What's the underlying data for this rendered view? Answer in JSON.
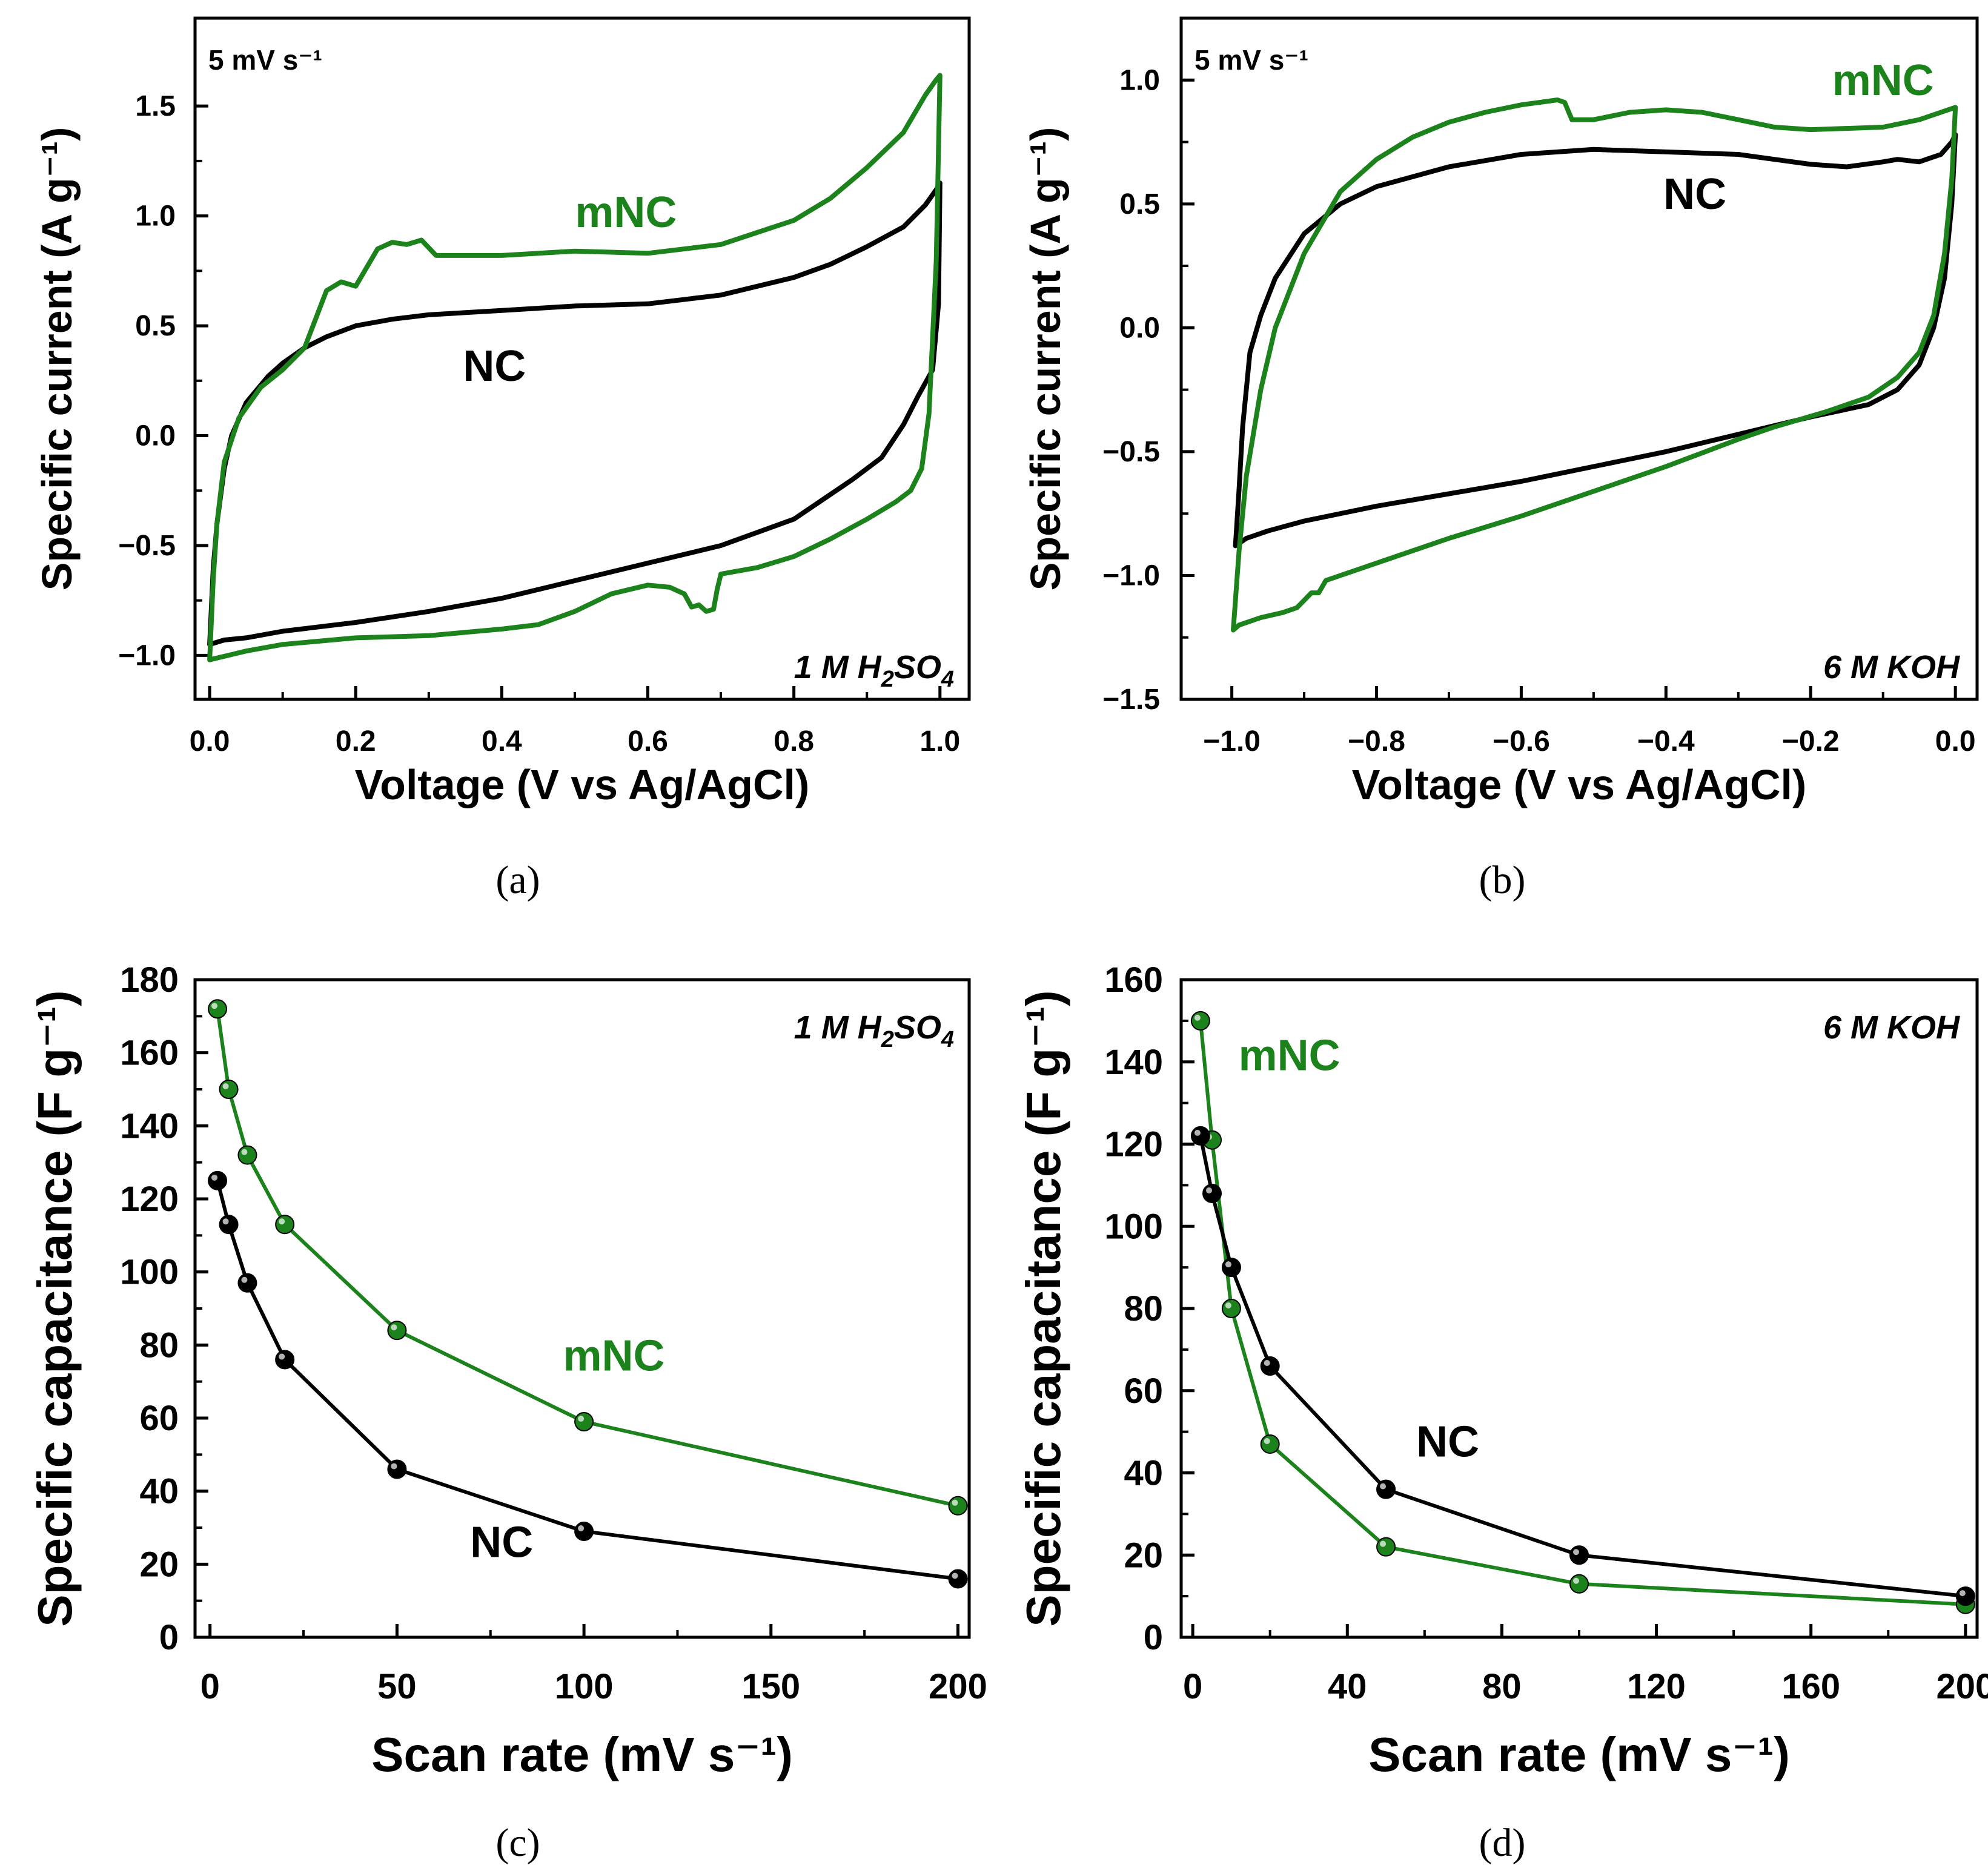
{
  "colors": {
    "NC": "#000000",
    "mNC": "#1c831c",
    "axis": "#000000"
  },
  "chart_data": [
    {
      "id": "a",
      "type": "line",
      "panel_label": "(a)",
      "title": "",
      "xlabel": "Voltage (V vs Ag/AgCl)",
      "ylabel": "Specific current (A g⁻¹)",
      "xlim": [
        -0.02,
        1.04
      ],
      "ylim": [
        -1.2,
        1.9
      ],
      "xticks": [
        "0.0",
        "0.2",
        "0.4",
        "0.6",
        "0.8",
        "1.0"
      ],
      "xtick_values": [
        0,
        0.2,
        0.4,
        0.6,
        0.8,
        1.0
      ],
      "yticks": [
        "−1.0",
        "−0.5",
        "0.0",
        "0.5",
        "1.0",
        "1.5"
      ],
      "ytick_values": [
        -1.0,
        -0.5,
        0.0,
        0.5,
        1.0,
        1.5
      ],
      "annotation_topleft": "5 mV s⁻¹",
      "electrolyte": {
        "num": "1 M H",
        "sub1": "2",
        "mid": "SO",
        "sub2": "4"
      },
      "series": [
        {
          "name": "NC",
          "color_key": "NC",
          "x": [
            0.0,
            0.005,
            0.01,
            0.02,
            0.03,
            0.05,
            0.08,
            0.1,
            0.13,
            0.16,
            0.2,
            0.25,
            0.3,
            0.4,
            0.5,
            0.6,
            0.7,
            0.8,
            0.85,
            0.9,
            0.95,
            0.98,
            0.995,
            1.0,
            0.998,
            0.99,
            0.97,
            0.95,
            0.92,
            0.88,
            0.8,
            0.7,
            0.6,
            0.5,
            0.4,
            0.3,
            0.2,
            0.1,
            0.05,
            0.02,
            0.0
          ],
          "y": [
            -0.95,
            -0.6,
            -0.4,
            -0.15,
            0.0,
            0.15,
            0.27,
            0.33,
            0.4,
            0.45,
            0.5,
            0.53,
            0.55,
            0.57,
            0.59,
            0.6,
            0.64,
            0.72,
            0.78,
            0.86,
            0.95,
            1.05,
            1.12,
            1.15,
            0.6,
            0.3,
            0.18,
            0.05,
            -0.1,
            -0.2,
            -0.38,
            -0.5,
            -0.58,
            -0.66,
            -0.74,
            -0.8,
            -0.85,
            -0.89,
            -0.92,
            -0.93,
            -0.95
          ]
        },
        {
          "name": "mNC",
          "color_key": "mNC",
          "x": [
            0.0,
            0.005,
            0.01,
            0.02,
            0.04,
            0.07,
            0.1,
            0.13,
            0.16,
            0.18,
            0.2,
            0.23,
            0.25,
            0.27,
            0.29,
            0.31,
            0.4,
            0.5,
            0.6,
            0.7,
            0.8,
            0.85,
            0.9,
            0.95,
            0.98,
            0.995,
            1.0,
            0.995,
            0.985,
            0.975,
            0.96,
            0.94,
            0.92,
            0.9,
            0.85,
            0.8,
            0.75,
            0.7,
            0.695,
            0.69,
            0.68,
            0.67,
            0.66,
            0.65,
            0.63,
            0.6,
            0.55,
            0.5,
            0.45,
            0.4,
            0.3,
            0.2,
            0.1,
            0.05,
            0.0
          ],
          "y": [
            -1.02,
            -0.65,
            -0.4,
            -0.12,
            0.08,
            0.22,
            0.3,
            0.4,
            0.66,
            0.7,
            0.68,
            0.85,
            0.88,
            0.87,
            0.89,
            0.82,
            0.82,
            0.84,
            0.83,
            0.87,
            0.98,
            1.08,
            1.22,
            1.38,
            1.55,
            1.62,
            1.64,
            0.8,
            0.1,
            -0.15,
            -0.25,
            -0.3,
            -0.34,
            -0.38,
            -0.47,
            -0.55,
            -0.6,
            -0.63,
            -0.7,
            -0.79,
            -0.8,
            -0.77,
            -0.78,
            -0.72,
            -0.69,
            -0.68,
            -0.72,
            -0.8,
            -0.86,
            -0.88,
            -0.91,
            -0.92,
            -0.95,
            -0.98,
            -1.02
          ]
        }
      ],
      "series_labels": [
        {
          "name": "mNC",
          "x": 0.57,
          "y": 0.95
        },
        {
          "name": "NC",
          "x": 0.39,
          "y": 0.25
        }
      ]
    },
    {
      "id": "b",
      "type": "line",
      "panel_label": "(b)",
      "title": "",
      "xlabel": "Voltage (V vs Ag/AgCl)",
      "ylabel": "Specific current (A g⁻¹)",
      "xlim": [
        -1.07,
        0.03
      ],
      "ylim": [
        -1.5,
        1.25
      ],
      "xticks": [
        "−1.0",
        "−0.8",
        "−0.6",
        "−0.4",
        "−0.2",
        "0.0"
      ],
      "xtick_values": [
        -1.0,
        -0.8,
        -0.6,
        -0.4,
        -0.2,
        0.0
      ],
      "yticks": [
        "−1.5",
        "−1.0",
        "−0.5",
        "0.0",
        "0.5",
        "1.0"
      ],
      "ytick_values": [
        -1.5,
        -1.0,
        -0.5,
        0.0,
        0.5,
        1.0
      ],
      "annotation_topleft": "5 mV s⁻¹",
      "electrolyte": {
        "num": "6 M  KOH",
        "sub1": "",
        "mid": "",
        "sub2": ""
      },
      "series": [
        {
          "name": "NC",
          "color_key": "NC",
          "x": [
            -0.995,
            -0.99,
            -0.985,
            -0.975,
            -0.96,
            -0.94,
            -0.9,
            -0.85,
            -0.8,
            -0.7,
            -0.6,
            -0.5,
            -0.4,
            -0.3,
            -0.25,
            -0.2,
            -0.15,
            -0.1,
            -0.08,
            -0.05,
            -0.02,
            -0.005,
            0.0,
            -0.005,
            -0.015,
            -0.03,
            -0.05,
            -0.08,
            -0.12,
            -0.2,
            -0.3,
            -0.4,
            -0.5,
            -0.6,
            -0.7,
            -0.8,
            -0.9,
            -0.95,
            -0.98,
            -0.99,
            -0.995
          ],
          "y": [
            -0.88,
            -0.65,
            -0.4,
            -0.1,
            0.05,
            0.2,
            0.38,
            0.5,
            0.57,
            0.65,
            0.7,
            0.72,
            0.71,
            0.7,
            0.68,
            0.66,
            0.65,
            0.67,
            0.68,
            0.67,
            0.7,
            0.75,
            0.78,
            0.5,
            0.2,
            0.0,
            -0.15,
            -0.25,
            -0.31,
            -0.36,
            -0.43,
            -0.5,
            -0.56,
            -0.62,
            -0.67,
            -0.72,
            -0.78,
            -0.82,
            -0.85,
            -0.87,
            -0.88
          ]
        },
        {
          "name": "mNC",
          "color_key": "mNC",
          "x": [
            -0.998,
            -0.99,
            -0.98,
            -0.96,
            -0.94,
            -0.9,
            -0.85,
            -0.8,
            -0.75,
            -0.7,
            -0.65,
            -0.6,
            -0.55,
            -0.54,
            -0.53,
            -0.5,
            -0.45,
            -0.4,
            -0.35,
            -0.3,
            -0.25,
            -0.2,
            -0.1,
            -0.05,
            0.0,
            -0.005,
            -0.015,
            -0.03,
            -0.05,
            -0.08,
            -0.12,
            -0.18,
            -0.25,
            -0.3,
            -0.4,
            -0.5,
            -0.6,
            -0.7,
            -0.8,
            -0.87,
            -0.88,
            -0.89,
            -0.9,
            -0.91,
            -0.93,
            -0.96,
            -0.99,
            -0.998
          ],
          "y": [
            -1.22,
            -0.9,
            -0.6,
            -0.25,
            0.0,
            0.3,
            0.55,
            0.68,
            0.77,
            0.83,
            0.87,
            0.9,
            0.92,
            0.91,
            0.84,
            0.84,
            0.87,
            0.88,
            0.87,
            0.84,
            0.81,
            0.8,
            0.81,
            0.84,
            0.89,
            0.6,
            0.3,
            0.05,
            -0.1,
            -0.2,
            -0.28,
            -0.34,
            -0.4,
            -0.45,
            -0.56,
            -0.66,
            -0.76,
            -0.85,
            -0.95,
            -1.02,
            -1.07,
            -1.07,
            -1.1,
            -1.13,
            -1.15,
            -1.17,
            -1.2,
            -1.22
          ]
        }
      ],
      "series_labels": [
        {
          "name": "mNC",
          "x": -0.1,
          "y": 0.94
        },
        {
          "name": "NC",
          "x": -0.36,
          "y": 0.48
        }
      ]
    },
    {
      "id": "c",
      "type": "line",
      "panel_label": "(c)",
      "title": "",
      "xlabel": "Scan rate (mV s⁻¹)",
      "ylabel": "Specific capacitance (F g⁻¹)",
      "xlim": [
        -4,
        203
      ],
      "ylim": [
        0,
        180
      ],
      "xticks": [
        "0",
        "50",
        "100",
        "150",
        "200"
      ],
      "xtick_values": [
        0,
        50,
        100,
        150,
        200
      ],
      "yticks": [
        "0",
        "20",
        "40",
        "60",
        "80",
        "100",
        "120",
        "140",
        "160",
        "180"
      ],
      "ytick_values": [
        0,
        20,
        40,
        60,
        80,
        100,
        120,
        140,
        160,
        180
      ],
      "electrolyte": {
        "num": "1 M H",
        "sub1": "2",
        "mid": "SO",
        "sub2": "4"
      },
      "series": [
        {
          "name": "mNC",
          "color_key": "mNC",
          "x": [
            2,
            5,
            10,
            20,
            50,
            100,
            200
          ],
          "y": [
            172,
            150,
            132,
            113,
            84,
            59,
            36
          ]
        },
        {
          "name": "NC",
          "color_key": "NC",
          "x": [
            2,
            5,
            10,
            20,
            50,
            100,
            200
          ],
          "y": [
            125,
            113,
            97,
            76,
            46,
            29,
            16
          ]
        }
      ],
      "series_labels": [
        {
          "name": "mNC",
          "x": 108,
          "y": 73
        },
        {
          "name": "NC",
          "x": 78,
          "y": 22
        }
      ]
    },
    {
      "id": "d",
      "type": "line",
      "panel_label": "(d)",
      "title": "",
      "xlabel": "Scan rate (mV s⁻¹)",
      "ylabel": "Specific capacitance (F g⁻¹)",
      "xlim": [
        -3,
        203
      ],
      "ylim": [
        0,
        160
      ],
      "xticks": [
        "0",
        "40",
        "80",
        "120",
        "160",
        "200"
      ],
      "xtick_values": [
        0,
        40,
        80,
        120,
        160,
        200
      ],
      "yticks": [
        "0",
        "20",
        "40",
        "60",
        "80",
        "100",
        "120",
        "140",
        "160"
      ],
      "ytick_values": [
        0,
        20,
        40,
        60,
        80,
        100,
        120,
        140,
        160
      ],
      "electrolyte": {
        "num": "6 M KOH",
        "sub1": "",
        "mid": "",
        "sub2": ""
      },
      "series": [
        {
          "name": "mNC",
          "color_key": "mNC",
          "x": [
            2,
            5,
            10,
            20,
            50,
            100,
            200
          ],
          "y": [
            150,
            121,
            80,
            47,
            22,
            13,
            8
          ]
        },
        {
          "name": "NC",
          "color_key": "NC",
          "x": [
            2,
            5,
            10,
            20,
            50,
            100,
            200
          ],
          "y": [
            122,
            108,
            90,
            66,
            36,
            20,
            10
          ]
        }
      ],
      "series_labels": [
        {
          "name": "mNC",
          "x": 25,
          "y": 138
        },
        {
          "name": "NC",
          "x": 66,
          "y": 44
        }
      ]
    }
  ]
}
